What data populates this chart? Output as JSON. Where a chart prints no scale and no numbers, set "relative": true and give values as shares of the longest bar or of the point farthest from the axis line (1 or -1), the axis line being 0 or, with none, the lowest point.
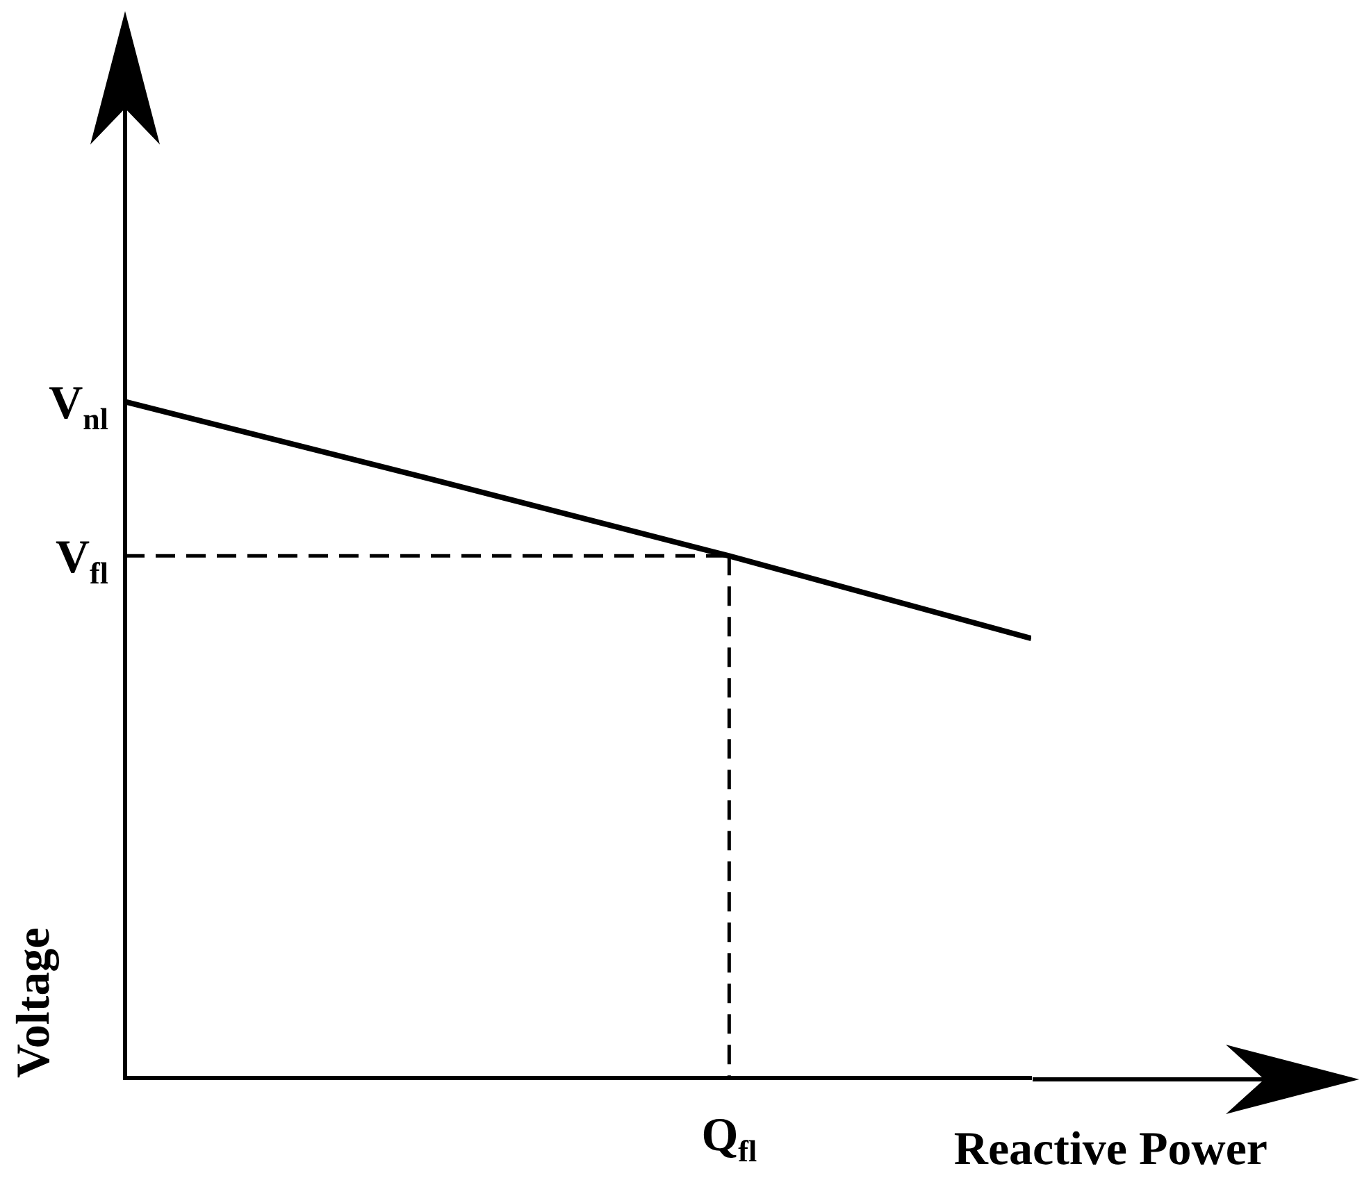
{
  "chart_data": {
    "type": "line",
    "relative": true,
    "xlabel": "Reactive Power",
    "ylabel": "Voltage",
    "categories": [
      null,
      null,
      null,
      null
    ],
    "series": [
      {
        "color": "#000000",
        "values": [
          1,
          0.887,
          0.772,
          0.65
        ]
      }
    ],
    "annotations": [
      "V$_{nl}$",
      "V$_{fl}$",
      "Q$_{fl}$"
    ],
    "ref_lines": [
      {
        "axis": "y",
        "value": 0.772,
        "color": "#000000",
        "line_style": "dashed"
      }
    ],
    "marker": "none",
    "line_style": "solid"
  }
}
